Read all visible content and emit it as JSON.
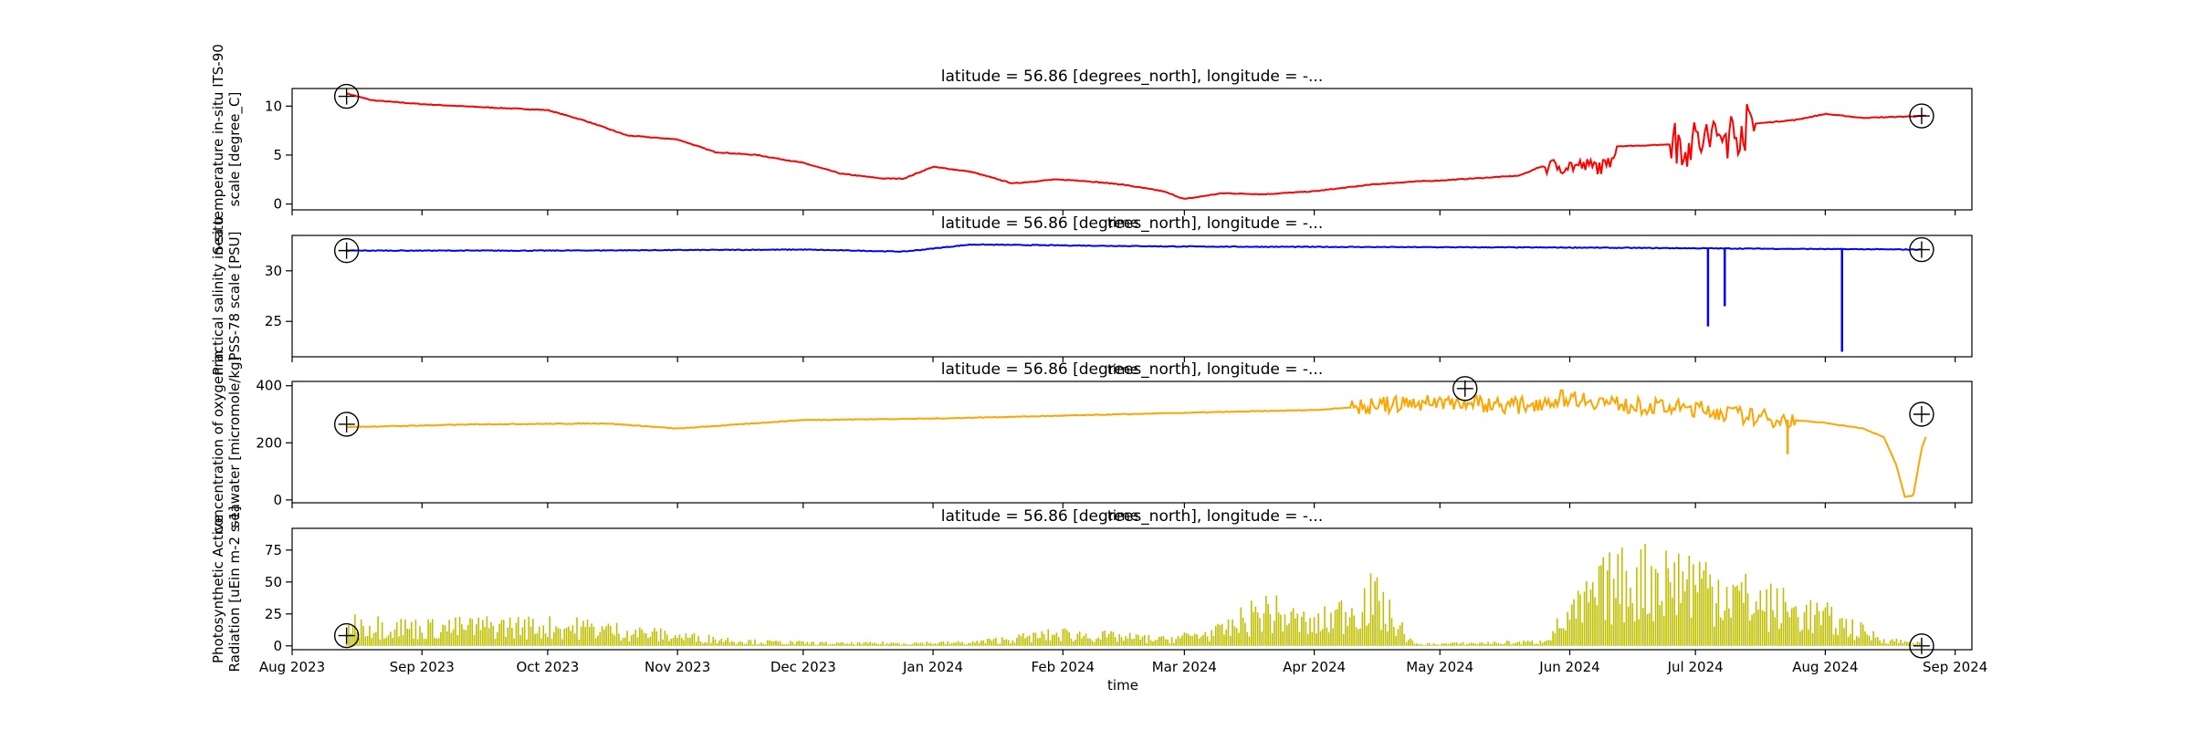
{
  "figure": {
    "xlabel_bottom": "time",
    "xlabel_overlap": "time",
    "x_range": [
      "2023-08-01",
      "2024-09-05"
    ],
    "x_ticks": [
      {
        "date": "2023-08-01",
        "label": "Aug 2023"
      },
      {
        "date": "2023-09-01",
        "label": "Sep 2023"
      },
      {
        "date": "2023-10-01",
        "label": "Oct 2023"
      },
      {
        "date": "2023-11-01",
        "label": "Nov 2023"
      },
      {
        "date": "2023-12-01",
        "label": "Dec 2023"
      },
      {
        "date": "2024-01-01",
        "label": "Jan 2024"
      },
      {
        "date": "2024-02-01",
        "label": "Feb 2024"
      },
      {
        "date": "2024-03-01",
        "label": "Mar 2024"
      },
      {
        "date": "2024-04-01",
        "label": "Apr 2024"
      },
      {
        "date": "2024-05-01",
        "label": "May 2024"
      },
      {
        "date": "2024-06-01",
        "label": "Jun 2024"
      },
      {
        "date": "2024-07-01",
        "label": "Jul 2024"
      },
      {
        "date": "2024-08-01",
        "label": "Aug 2024"
      },
      {
        "date": "2024-09-01",
        "label": "Sep 2024"
      }
    ]
  },
  "chart_data": [
    {
      "type": "line",
      "title": "latitude = 56.86 [degrees_north], longitude = -...",
      "ylabel_lines": [
        "Sea temperature in-situ ITS-90",
        "scale [degree_C]"
      ],
      "yticks": [
        0,
        5,
        10
      ],
      "ylim": [
        -0.6,
        11.8
      ],
      "color": "#ff0000",
      "x": [
        "2023-08-14",
        "2023-08-20",
        "2023-09-01",
        "2023-09-15",
        "2023-10-01",
        "2023-10-10",
        "2023-10-20",
        "2023-11-01",
        "2023-11-10",
        "2023-11-20",
        "2023-12-01",
        "2023-12-10",
        "2023-12-20",
        "2023-12-25",
        "2024-01-01",
        "2024-01-10",
        "2024-01-20",
        "2024-01-30",
        "2024-02-05",
        "2024-02-15",
        "2024-02-25",
        "2024-03-01",
        "2024-03-10",
        "2024-03-20",
        "2024-04-01",
        "2024-04-15",
        "2024-04-25",
        "2024-05-01",
        "2024-05-20",
        "2024-05-25",
        "2024-06-01",
        "2024-06-10",
        "2024-06-12",
        "2024-06-20",
        "2024-06-30",
        "2024-07-10",
        "2024-07-15",
        "2024-07-25",
        "2024-08-01",
        "2024-08-10",
        "2024-08-25"
      ],
      "y": [
        11.3,
        10.6,
        10.2,
        9.9,
        9.6,
        8.5,
        7.0,
        6.6,
        5.3,
        5.0,
        4.2,
        3.1,
        2.6,
        2.6,
        3.8,
        3.3,
        2.1,
        2.5,
        2.4,
        2.0,
        1.3,
        0.5,
        1.1,
        1.0,
        1.3,
        2.0,
        2.3,
        2.4,
        2.9,
        3.8,
        3.9,
        3.8,
        5.9,
        6.0,
        6.2,
        7.2,
        8.2,
        8.6,
        9.2,
        8.8,
        9.0
      ],
      "noise_bands": [
        {
          "from": "2024-06-25",
          "to": "2024-07-15",
          "amplitude": 2.5
        },
        {
          "from": "2024-05-25",
          "to": "2024-06-12",
          "amplitude": 0.8
        }
      ],
      "markers": [
        {
          "x": "2023-08-14",
          "y": 11.0
        },
        {
          "x": "2024-08-24",
          "y": 9.0
        }
      ]
    },
    {
      "type": "line",
      "title": "latitude = 56.86 [degrees_north], longitude = -...",
      "ylabel_lines": [
        "Practical salinity in-situ",
        "PSS-78 scale [PSU]"
      ],
      "yticks": [
        25,
        30
      ],
      "ylim": [
        21.5,
        33.5
      ],
      "color": "#0000ff",
      "x": [
        "2023-08-14",
        "2023-10-01",
        "2023-12-01",
        "2023-12-25",
        "2024-01-10",
        "2024-03-01",
        "2024-06-01",
        "2024-08-24"
      ],
      "y": [
        32.0,
        32.0,
        32.1,
        31.9,
        32.6,
        32.4,
        32.3,
        32.1
      ],
      "spikes": [
        {
          "x": "2024-07-04",
          "y": 24.5
        },
        {
          "x": "2024-07-08",
          "y": 26.5
        },
        {
          "x": "2024-08-05",
          "y": 22.0
        }
      ],
      "markers": [
        {
          "x": "2023-08-14",
          "y": 32.0
        },
        {
          "x": "2024-08-24",
          "y": 32.1
        }
      ]
    },
    {
      "type": "line",
      "title": "latitude = 56.86 [degrees_north], longitude = -...",
      "ylabel_lines": [
        "concentration of oxygen in",
        "seawater [micromole/kg]"
      ],
      "yticks": [
        0,
        200,
        400
      ],
      "ylim": [
        -10,
        415
      ],
      "color": "#ffa500",
      "x": [
        "2023-08-14",
        "2023-09-15",
        "2023-10-15",
        "2023-11-01",
        "2023-12-01",
        "2024-01-01",
        "2024-02-01",
        "2024-03-01",
        "2024-04-01",
        "2024-05-01",
        "2024-05-20",
        "2024-06-01",
        "2024-06-15",
        "2024-07-01",
        "2024-07-15",
        "2024-08-01",
        "2024-08-10",
        "2024-08-15",
        "2024-08-18",
        "2024-08-20",
        "2024-08-22",
        "2024-08-24",
        "2024-08-25"
      ],
      "y": [
        255,
        265,
        268,
        250,
        280,
        285,
        295,
        305,
        315,
        345,
        330,
        360,
        330,
        320,
        290,
        270,
        250,
        220,
        120,
        10,
        15,
        180,
        220
      ],
      "noise_bands": [
        {
          "from": "2024-04-10",
          "to": "2024-07-25",
          "amplitude": 30
        }
      ],
      "spikes": [
        {
          "x": "2024-07-23",
          "y": 160
        }
      ],
      "markers": [
        {
          "x": "2023-08-14",
          "y": 265
        },
        {
          "x": "2024-05-07",
          "y": 390
        },
        {
          "x": "2024-08-24",
          "y": 300
        }
      ]
    },
    {
      "type": "bar",
      "title": "latitude = 56.86 [degrees_north], longitude = -...",
      "ylabel_lines": [
        "Photosynthetic Active",
        "Radiation [uEin m-2 s-1]"
      ],
      "yticks": [
        0,
        25,
        50,
        75
      ],
      "ylim": [
        -3,
        92
      ],
      "color": "#bfbf00",
      "envelope_x": [
        "2023-08-14",
        "2023-09-01",
        "2023-09-20",
        "2023-10-10",
        "2023-11-01",
        "2023-11-20",
        "2023-12-10",
        "2024-01-10",
        "2024-02-01",
        "2024-02-25",
        "2024-03-10",
        "2024-03-20",
        "2024-04-01",
        "2024-04-15",
        "2024-04-25",
        "2024-05-25",
        "2024-06-10",
        "2024-06-20",
        "2024-07-01",
        "2024-07-15",
        "2024-08-01",
        "2024-08-15",
        "2024-08-24"
      ],
      "envelope_y": [
        28,
        22,
        25,
        23,
        12,
        5,
        3,
        4,
        15,
        8,
        18,
        45,
        25,
        60,
        2,
        5,
        75,
        85,
        85,
        55,
        35,
        8,
        3
      ],
      "markers": [
        {
          "x": "2023-08-14",
          "y": 8
        },
        {
          "x": "2024-08-24",
          "y": 0
        }
      ]
    }
  ]
}
